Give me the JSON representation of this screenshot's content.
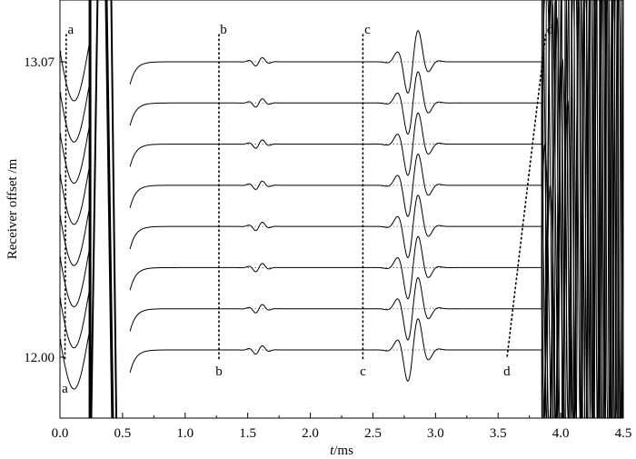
{
  "chart_data": {
    "type": "line",
    "title": "",
    "xlabel_italic": "t",
    "xlabel_unit": "/ms",
    "ylabel": "Receiver offset /m",
    "xlim": [
      0.0,
      4.5
    ],
    "x_ticks": [
      "0.0",
      "0.5",
      "1.0",
      "1.5",
      "2.0",
      "2.5",
      "3.0",
      "3.5",
      "4.0",
      "4.5"
    ],
    "y_ticks": [
      "13.07",
      "12.00"
    ],
    "grid": false,
    "legend": "none",
    "trace_count": 8,
    "color": "#000000",
    "events": [
      {
        "label": "a",
        "x_top": 0.05,
        "x_bottom": 0.04
      },
      {
        "label": "b",
        "x_top": 1.27,
        "x_bottom": 1.27
      },
      {
        "label": "c",
        "x_top": 2.42,
        "x_bottom": 2.42
      },
      {
        "label": "d",
        "x_top": 3.88,
        "x_bottom": 3.57
      }
    ],
    "wavelets": [
      {
        "center": 1.59,
        "amplitude": 0.12,
        "kind": "small"
      },
      {
        "center": 2.82,
        "amplitude": 0.9,
        "kind": "large"
      }
    ]
  }
}
